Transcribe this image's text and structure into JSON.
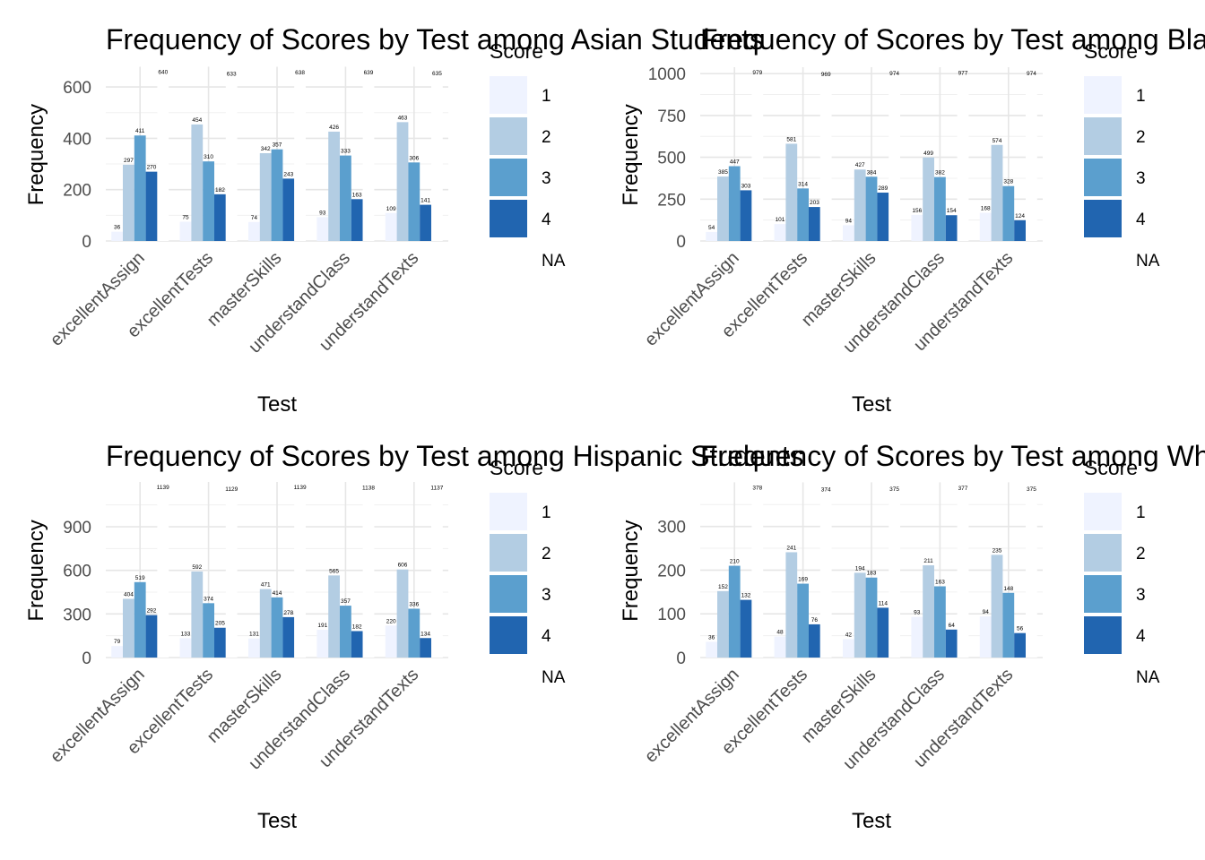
{
  "legend_colors": {
    "1": "#eff3ff",
    "2": "#b3cde3",
    "3": "#5b9fce",
    "4": "#2165b0",
    "NA": "#ffffff"
  },
  "chart_data": [
    {
      "type": "bar",
      "title": "Frequency of Scores by Test among Asian Students",
      "xlabel": "Test",
      "ylabel": "Frequency",
      "categories": [
        "excellentAssign",
        "excellentTests",
        "masterSkills",
        "understandClass",
        "understandTexts"
      ],
      "legend_title": "Score",
      "legend_labels": [
        "1",
        "2",
        "3",
        "4",
        "NA"
      ],
      "yticks": [
        0,
        200,
        400,
        600
      ],
      "ylim": [
        0,
        672
      ],
      "series": [
        {
          "name": "1",
          "values": [
            36,
            75,
            74,
            93,
            109
          ]
        },
        {
          "name": "2",
          "values": [
            297,
            454,
            342,
            426,
            463
          ]
        },
        {
          "name": "3",
          "values": [
            411,
            310,
            357,
            333,
            306
          ]
        },
        {
          "name": "4",
          "values": [
            270,
            182,
            243,
            163,
            141
          ]
        },
        {
          "name": "NA",
          "values": [
            640,
            633,
            638,
            639,
            635
          ]
        }
      ]
    },
    {
      "type": "bar",
      "title": "Frequency of Scores by Test among Black Students",
      "xlabel": "Test",
      "ylabel": "Frequency",
      "categories": [
        "excellentAssign",
        "excellentTests",
        "masterSkills",
        "understandClass",
        "understandTexts"
      ],
      "legend_title": "Score",
      "legend_labels": [
        "1",
        "2",
        "3",
        "4",
        "NA"
      ],
      "yticks": [
        0,
        250,
        500,
        750,
        1000
      ],
      "ylim": [
        0,
        1028
      ],
      "series": [
        {
          "name": "1",
          "values": [
            54,
            101,
            94,
            156,
            168
          ]
        },
        {
          "name": "2",
          "values": [
            385,
            581,
            427,
            499,
            574
          ]
        },
        {
          "name": "3",
          "values": [
            447,
            314,
            384,
            382,
            328
          ]
        },
        {
          "name": "4",
          "values": [
            303,
            203,
            289,
            154,
            124
          ]
        },
        {
          "name": "NA",
          "values": [
            979,
            969,
            974,
            977,
            974
          ]
        }
      ]
    },
    {
      "type": "bar",
      "title": "Frequency of Scores by Test among Hispanic Students",
      "xlabel": "Test",
      "ylabel": "Frequency",
      "categories": [
        "excellentAssign",
        "excellentTests",
        "masterSkills",
        "understandClass",
        "understandTexts"
      ],
      "legend_title": "Score",
      "legend_labels": [
        "1",
        "2",
        "3",
        "4",
        "NA"
      ],
      "yticks": [
        0,
        300,
        600,
        900
      ],
      "ylim": [
        0,
        1196
      ],
      "series": [
        {
          "name": "1",
          "values": [
            79,
            133,
            131,
            191,
            220
          ]
        },
        {
          "name": "2",
          "values": [
            404,
            592,
            471,
            565,
            606
          ]
        },
        {
          "name": "3",
          "values": [
            519,
            374,
            414,
            357,
            336
          ]
        },
        {
          "name": "4",
          "values": [
            292,
            205,
            278,
            182,
            134
          ]
        },
        {
          "name": "NA",
          "values": [
            1139,
            1129,
            1139,
            1138,
            1137
          ]
        }
      ]
    },
    {
      "type": "bar",
      "title": "Frequency of Scores by Test among White Students",
      "xlabel": "Test",
      "ylabel": "Frequency",
      "categories": [
        "excellentAssign",
        "excellentTests",
        "masterSkills",
        "understandClass",
        "understandTexts"
      ],
      "legend_title": "Score",
      "legend_labels": [
        "1",
        "2",
        "3",
        "4",
        "NA"
      ],
      "yticks": [
        0,
        100,
        200,
        300
      ],
      "ylim": [
        0,
        397
      ],
      "series": [
        {
          "name": "1",
          "values": [
            36,
            48,
            42,
            93,
            94
          ]
        },
        {
          "name": "2",
          "values": [
            152,
            241,
            194,
            211,
            235
          ]
        },
        {
          "name": "3",
          "values": [
            210,
            169,
            183,
            163,
            148
          ]
        },
        {
          "name": "4",
          "values": [
            132,
            76,
            114,
            64,
            56
          ]
        },
        {
          "name": "NA",
          "values": [
            378,
            374,
            375,
            377,
            375
          ]
        }
      ]
    }
  ]
}
